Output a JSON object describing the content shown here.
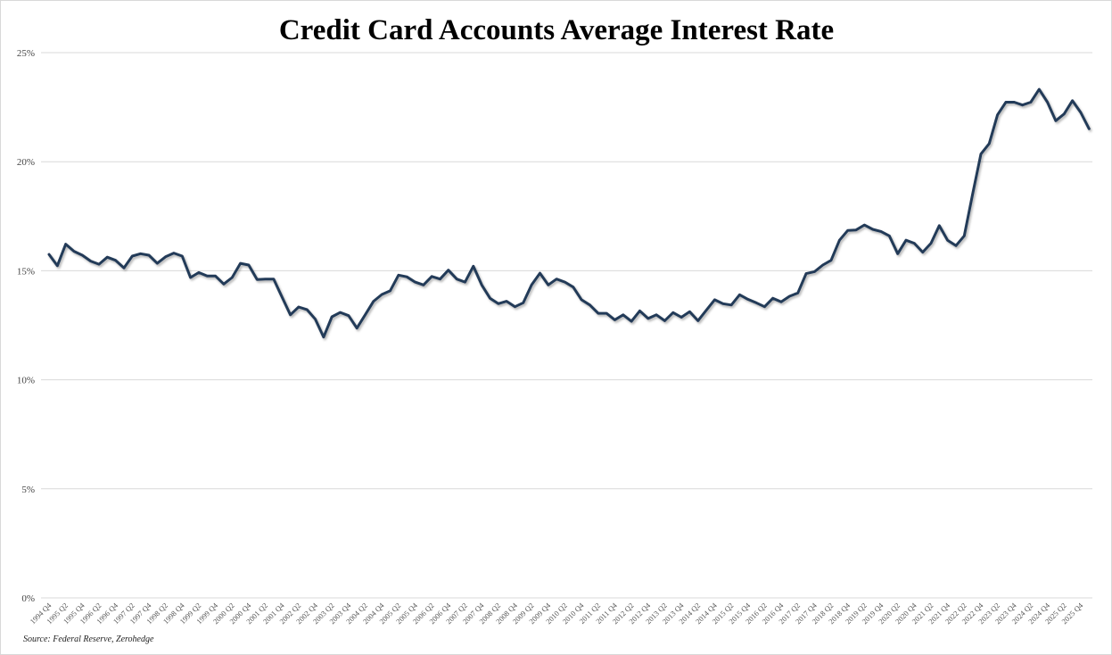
{
  "chart_data": {
    "type": "line",
    "title": "Credit Card Accounts Average Interest Rate",
    "source": "Source: Federal Reserve, Zerohedge",
    "xlabel": "",
    "ylabel": "",
    "frequency": "quarterly",
    "x_start": "1994 Q4",
    "ylim": [
      0,
      25
    ],
    "y_ticks": [
      0,
      5,
      10,
      15,
      20,
      25
    ],
    "y_tick_labels": [
      "0%",
      "5%",
      "10%",
      "15%",
      "20%",
      "25%"
    ],
    "grid": true,
    "legend": "none",
    "line_color": "#243a58",
    "x_tick_labels": [
      "1994 Q4",
      "1995 Q2",
      "1995 Q4",
      "1996 Q2",
      "1996 Q4",
      "1997 Q2",
      "1997 Q4",
      "1998 Q2",
      "1998 Q4",
      "1999 Q2",
      "1999 Q4",
      "2000 Q2",
      "2000 Q4",
      "2001 Q2",
      "2001 Q4",
      "2002 Q2",
      "2002 Q4",
      "2003 Q2",
      "2003 Q4",
      "2004 Q2",
      "2004 Q4",
      "2005 Q2",
      "2005 Q4",
      "2006 Q2",
      "2006 Q4",
      "2007 Q2",
      "2007 Q4",
      "2008 Q2",
      "2008 Q4",
      "2009 Q2",
      "2009 Q4",
      "2010 Q2",
      "2010 Q4",
      "2011 Q2",
      "2011 Q4",
      "2012 Q2",
      "2012 Q4",
      "2013 Q2",
      "2013 Q4",
      "2014 Q2",
      "2014 Q4",
      "2015 Q2",
      "2015 Q4",
      "2016 Q2",
      "2016 Q4",
      "2017 Q2",
      "2017 Q4",
      "2018 Q2",
      "2018 Q4",
      "2019 Q2",
      "2019 Q4",
      "2020 Q2",
      "2020 Q4",
      "2021 Q2",
      "2021 Q4",
      "2022 Q2",
      "2022 Q4",
      "2023 Q2",
      "2023 Q4",
      "2024 Q2",
      "2024 Q4",
      "2025 Q2",
      "2025 Q4"
    ],
    "values": [
      15.75,
      15.23,
      16.22,
      15.89,
      15.71,
      15.44,
      15.3,
      15.62,
      15.48,
      15.13,
      15.67,
      15.78,
      15.71,
      15.34,
      15.64,
      15.81,
      15.67,
      14.69,
      14.92,
      14.76,
      14.76,
      14.39,
      14.69,
      15.34,
      15.26,
      14.6,
      14.62,
      14.62,
      13.8,
      12.98,
      13.34,
      13.22,
      12.78,
      11.96,
      12.89,
      13.09,
      12.94,
      12.37,
      12.98,
      13.6,
      13.91,
      14.08,
      14.8,
      14.72,
      14.48,
      14.35,
      14.74,
      14.62,
      15.03,
      14.62,
      14.48,
      15.21,
      14.35,
      13.74,
      13.49,
      13.6,
      13.35,
      13.53,
      14.35,
      14.89,
      14.35,
      14.62,
      14.48,
      14.25,
      13.67,
      13.43,
      13.05,
      13.05,
      12.75,
      12.98,
      12.68,
      13.16,
      12.81,
      12.98,
      12.71,
      13.08,
      12.87,
      13.12,
      12.71,
      13.19,
      13.67,
      13.49,
      13.43,
      13.9,
      13.69,
      13.53,
      13.35,
      13.74,
      13.57,
      13.83,
      13.98,
      14.87,
      14.96,
      15.26,
      15.48,
      16.4,
      16.85,
      16.87,
      17.1,
      16.9,
      16.8,
      16.6,
      15.78,
      16.4,
      16.26,
      15.85,
      16.26,
      17.07,
      16.4,
      16.15,
      16.6,
      18.5,
      20.35,
      20.83,
      22.15,
      22.73,
      22.73,
      22.6,
      22.73,
      23.32,
      22.73,
      21.88,
      22.19,
      22.8,
      22.26,
      21.51
    ]
  }
}
